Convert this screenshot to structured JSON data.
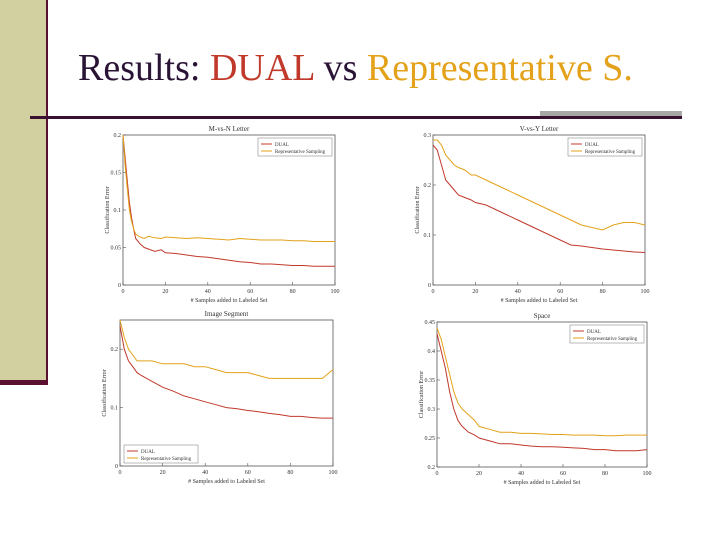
{
  "slide": {
    "title_prefix": "Results: ",
    "title_dual": "DUAL",
    "title_vs": " vs ",
    "title_rep": "Representative S.",
    "colors": {
      "dual": "#c0392b",
      "representative": "#e3a21a",
      "title_text": "#2a1436",
      "sidebar": "#d2d0a0"
    }
  },
  "chart_data": [
    {
      "type": "line",
      "title": "M-vs-N Letter",
      "xlabel": "# Samples added to Labeled Set",
      "ylabel": "Classification Error",
      "xlim": [
        0,
        100
      ],
      "ylim": [
        0,
        0.2
      ],
      "xticks": [
        "0",
        "20",
        "40",
        "60",
        "80",
        "100"
      ],
      "yticks": [
        "0",
        "0.05",
        "0.1",
        "0.15",
        "0.2"
      ],
      "legend_position": "top-right",
      "series": [
        {
          "name": "DUAL",
          "color": "#c0392b",
          "x": [
            0,
            1,
            2,
            3,
            4,
            5,
            6,
            8,
            10,
            12,
            15,
            18,
            20,
            25,
            30,
            35,
            40,
            45,
            50,
            55,
            60,
            65,
            70,
            75,
            80,
            85,
            90,
            95,
            100
          ],
          "y": [
            0.2,
            0.17,
            0.14,
            0.11,
            0.09,
            0.075,
            0.062,
            0.055,
            0.05,
            0.048,
            0.045,
            0.047,
            0.043,
            0.042,
            0.04,
            0.038,
            0.037,
            0.035,
            0.033,
            0.031,
            0.03,
            0.028,
            0.028,
            0.027,
            0.026,
            0.026,
            0.025,
            0.025,
            0.025
          ]
        },
        {
          "name": "Representative Sampling",
          "color": "#e3a21a",
          "x": [
            0,
            1,
            2,
            3,
            4,
            5,
            6,
            8,
            10,
            12,
            15,
            18,
            20,
            25,
            30,
            35,
            40,
            45,
            50,
            55,
            60,
            65,
            70,
            75,
            80,
            85,
            90,
            95,
            100
          ],
          "y": [
            0.2,
            0.16,
            0.13,
            0.1,
            0.085,
            0.075,
            0.068,
            0.064,
            0.062,
            0.065,
            0.063,
            0.062,
            0.064,
            0.063,
            0.062,
            0.063,
            0.062,
            0.061,
            0.06,
            0.062,
            0.061,
            0.06,
            0.06,
            0.06,
            0.059,
            0.059,
            0.058,
            0.058,
            0.058
          ]
        }
      ]
    },
    {
      "type": "line",
      "title": "V-vs-Y Letter",
      "xlabel": "# Samples added to Labeled Set",
      "ylabel": "Classification Error",
      "xlim": [
        0,
        100
      ],
      "ylim": [
        0,
        0.3
      ],
      "xticks": [
        "0",
        "20",
        "40",
        "60",
        "80",
        "100"
      ],
      "yticks": [
        "0",
        "0.1",
        "0.2",
        "0.3"
      ],
      "legend_position": "top-right",
      "series": [
        {
          "name": "DUAL",
          "color": "#c0392b",
          "x": [
            0,
            2,
            4,
            6,
            8,
            10,
            12,
            15,
            18,
            20,
            25,
            30,
            35,
            40,
            45,
            50,
            55,
            60,
            65,
            70,
            75,
            80,
            85,
            90,
            95,
            100
          ],
          "y": [
            0.28,
            0.27,
            0.24,
            0.21,
            0.2,
            0.19,
            0.18,
            0.175,
            0.17,
            0.165,
            0.16,
            0.15,
            0.14,
            0.13,
            0.12,
            0.11,
            0.1,
            0.09,
            0.08,
            0.078,
            0.075,
            0.072,
            0.07,
            0.068,
            0.066,
            0.065
          ]
        },
        {
          "name": "Representative Sampling",
          "color": "#e3a21a",
          "x": [
            0,
            2,
            4,
            6,
            8,
            10,
            12,
            15,
            18,
            20,
            25,
            30,
            35,
            40,
            45,
            50,
            55,
            60,
            65,
            70,
            75,
            80,
            85,
            90,
            95,
            100
          ],
          "y": [
            0.29,
            0.29,
            0.28,
            0.26,
            0.25,
            0.24,
            0.235,
            0.23,
            0.22,
            0.22,
            0.21,
            0.2,
            0.19,
            0.18,
            0.17,
            0.16,
            0.15,
            0.14,
            0.13,
            0.12,
            0.115,
            0.11,
            0.12,
            0.125,
            0.125,
            0.12
          ]
        }
      ]
    },
    {
      "type": "line",
      "title": "Image Segment",
      "xlabel": "# Samples added to Labeled Set",
      "ylabel": "Classification Error",
      "xlim": [
        0,
        100
      ],
      "ylim": [
        0,
        0.25
      ],
      "xticks": [
        "0",
        "20",
        "40",
        "60",
        "80",
        "100"
      ],
      "yticks": [
        "0",
        "0.1",
        "0.2"
      ],
      "legend_position": "bottom-left",
      "series": [
        {
          "name": "DUAL",
          "color": "#c0392b",
          "x": [
            0,
            2,
            4,
            6,
            8,
            10,
            15,
            20,
            25,
            30,
            35,
            40,
            45,
            50,
            55,
            60,
            65,
            70,
            75,
            80,
            85,
            90,
            95,
            100
          ],
          "y": [
            0.24,
            0.2,
            0.18,
            0.17,
            0.16,
            0.155,
            0.145,
            0.135,
            0.128,
            0.12,
            0.115,
            0.11,
            0.105,
            0.1,
            0.098,
            0.095,
            0.093,
            0.09,
            0.088,
            0.085,
            0.085,
            0.083,
            0.082,
            0.082
          ]
        },
        {
          "name": "Representative Sampling",
          "color": "#e3a21a",
          "x": [
            0,
            2,
            4,
            6,
            8,
            10,
            15,
            20,
            25,
            30,
            35,
            40,
            45,
            50,
            55,
            60,
            65,
            70,
            75,
            80,
            85,
            90,
            95,
            100
          ],
          "y": [
            0.25,
            0.22,
            0.2,
            0.19,
            0.18,
            0.18,
            0.18,
            0.175,
            0.175,
            0.175,
            0.17,
            0.17,
            0.165,
            0.16,
            0.16,
            0.16,
            0.155,
            0.15,
            0.15,
            0.15,
            0.15,
            0.15,
            0.15,
            0.165
          ]
        }
      ]
    },
    {
      "type": "line",
      "title": "Space",
      "xlabel": "# Samples added to Labeled Set",
      "ylabel": "Classification Error",
      "xlim": [
        0,
        100
      ],
      "ylim": [
        0.2,
        0.45
      ],
      "xticks": [
        "0",
        "20",
        "40",
        "60",
        "80",
        "100"
      ],
      "yticks": [
        "0.2",
        "0.25",
        "0.3",
        "0.35",
        "0.4",
        "0.45"
      ],
      "legend_position": "top-right",
      "series": [
        {
          "name": "DUAL",
          "color": "#c0392b",
          "x": [
            0,
            2,
            4,
            6,
            8,
            10,
            12,
            15,
            18,
            20,
            25,
            30,
            35,
            40,
            45,
            50,
            55,
            60,
            65,
            70,
            75,
            80,
            85,
            90,
            95,
            100
          ],
          "y": [
            0.43,
            0.4,
            0.37,
            0.33,
            0.3,
            0.28,
            0.27,
            0.26,
            0.255,
            0.25,
            0.245,
            0.24,
            0.24,
            0.238,
            0.236,
            0.235,
            0.235,
            0.234,
            0.233,
            0.232,
            0.23,
            0.23,
            0.228,
            0.228,
            0.228,
            0.23
          ]
        },
        {
          "name": "Representative Sampling",
          "color": "#e3a21a",
          "x": [
            0,
            2,
            4,
            6,
            8,
            10,
            12,
            15,
            18,
            20,
            25,
            30,
            35,
            40,
            45,
            50,
            55,
            60,
            65,
            70,
            75,
            80,
            85,
            90,
            95,
            100
          ],
          "y": [
            0.44,
            0.42,
            0.39,
            0.36,
            0.33,
            0.31,
            0.3,
            0.29,
            0.28,
            0.27,
            0.265,
            0.26,
            0.26,
            0.258,
            0.258,
            0.257,
            0.256,
            0.256,
            0.255,
            0.255,
            0.255,
            0.254,
            0.254,
            0.255,
            0.255,
            0.255
          ]
        }
      ]
    }
  ]
}
